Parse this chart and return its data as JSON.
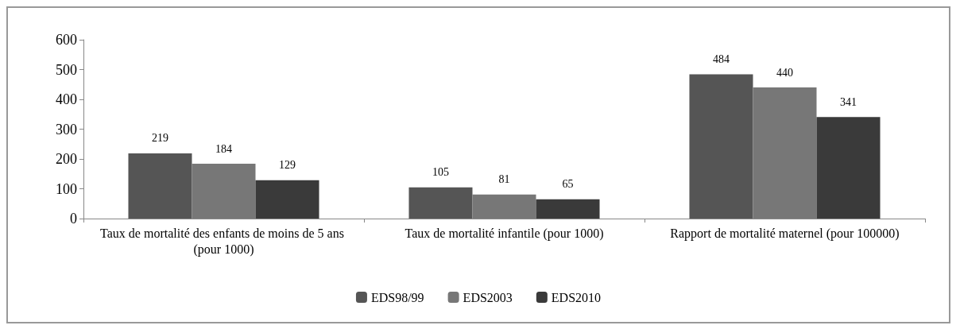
{
  "chart_data": {
    "type": "bar",
    "categories": [
      "Taux de mortalité des enfants de moins de 5 ans (pour 1000)",
      "Taux de mortalité infantile (pour 1000)",
      "Rapport de mortalité maternel (pour 100000)"
    ],
    "series": [
      {
        "name": "EDS98/99",
        "color": "#555555",
        "values": [
          219,
          105,
          484
        ]
      },
      {
        "name": "EDS2003",
        "color": "#777777",
        "values": [
          184,
          81,
          440
        ]
      },
      {
        "name": "EDS2010",
        "color": "#3a3a3a",
        "values": [
          129,
          65,
          341
        ]
      }
    ],
    "ylim": [
      0,
      600
    ],
    "yticks": [
      0,
      100,
      200,
      300,
      400,
      500,
      600
    ],
    "grid": false,
    "legend": "bottom",
    "data_labels": true
  }
}
